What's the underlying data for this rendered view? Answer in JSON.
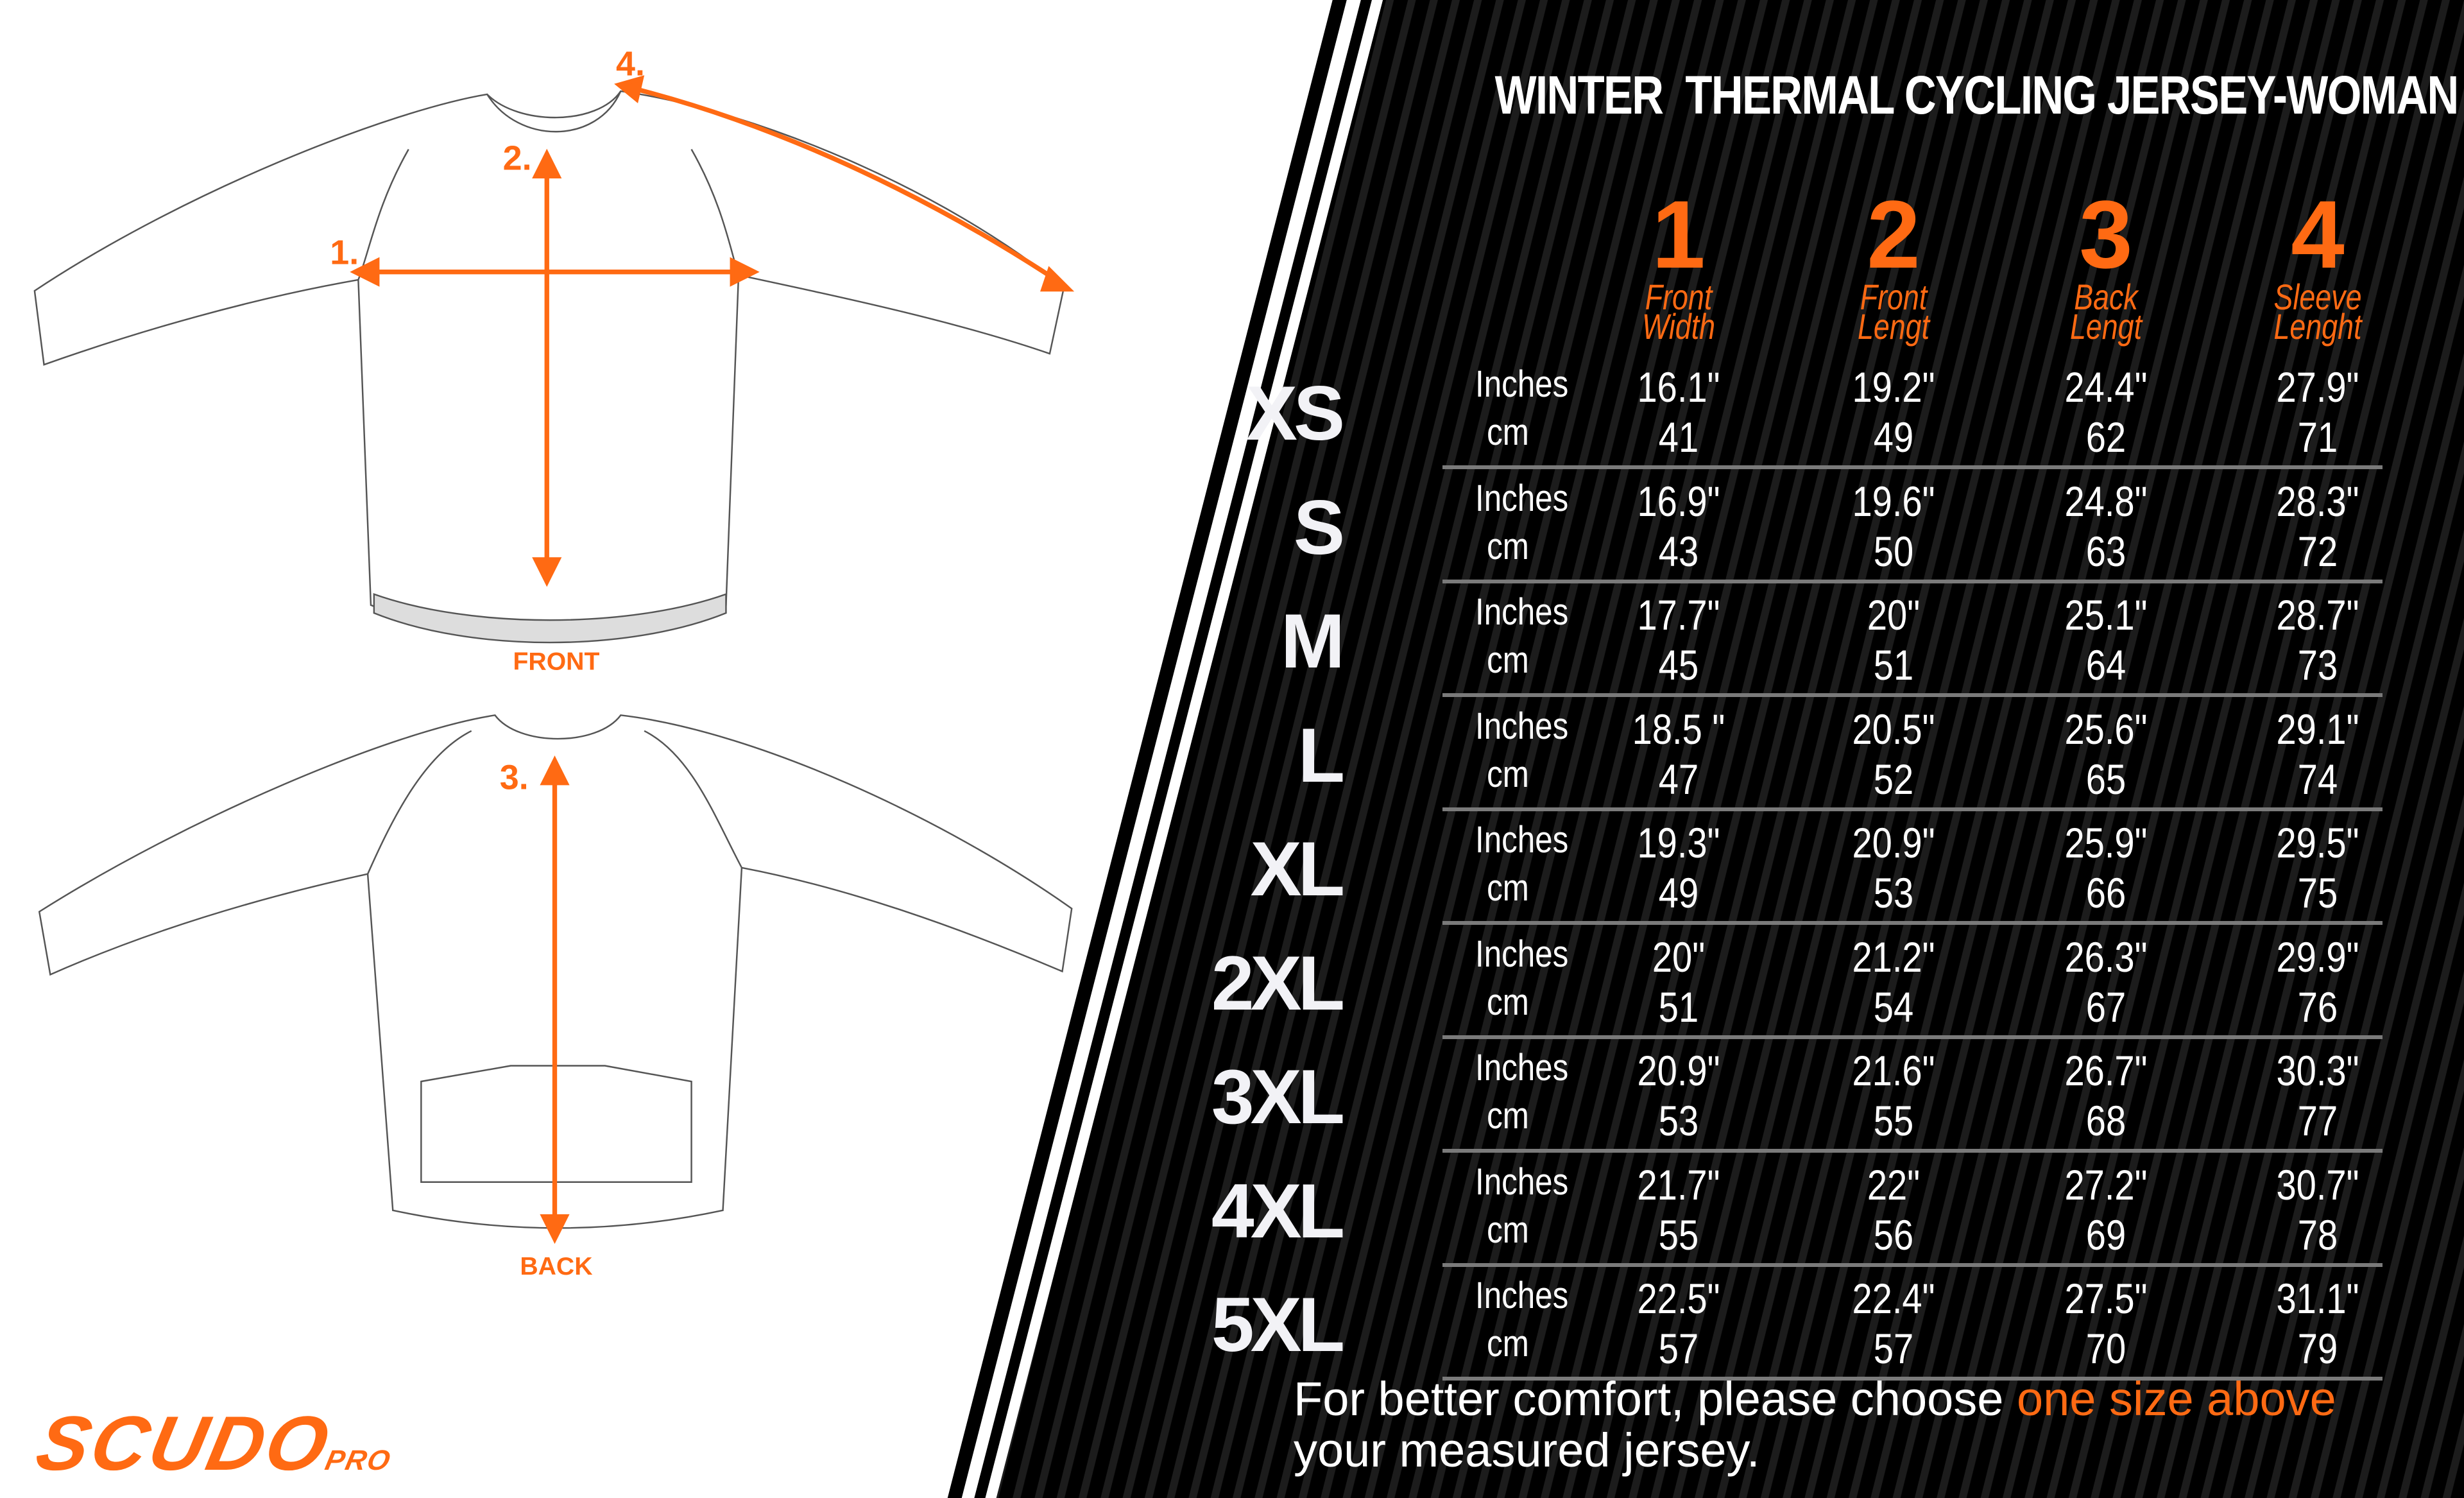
{
  "title": "WINTER  THERMAL CYCLING JERSEY-WOMAN",
  "colors": {
    "accent": "#ff6a13",
    "panel": "#000000",
    "text": "#ffffff"
  },
  "columns": [
    {
      "number": "1",
      "label_line1": "Front",
      "label_line2": "Width"
    },
    {
      "number": "2",
      "label_line1": "Front",
      "label_line2": "Lengt"
    },
    {
      "number": "3",
      "label_line1": "Back",
      "label_line2": "Lengt"
    },
    {
      "number": "4",
      "label_line1": "Sleeve",
      "label_line2": "Lenght"
    }
  ],
  "unit_labels": {
    "inches": "Inches",
    "cm": "cm"
  },
  "rows": [
    {
      "size": "XS",
      "inches": [
        "16.1\"",
        "19.2\"",
        "24.4\"",
        "27.9\""
      ],
      "cm": [
        "41",
        "49",
        "62",
        "71"
      ]
    },
    {
      "size": "S",
      "inches": [
        "16.9\"",
        "19.6\"",
        "24.8\"",
        "28.3\""
      ],
      "cm": [
        "43",
        "50",
        "63",
        "72"
      ]
    },
    {
      "size": "M",
      "inches": [
        "17.7\"",
        "20\"",
        "25.1\"",
        "28.7\""
      ],
      "cm": [
        "45",
        "51",
        "64",
        "73"
      ]
    },
    {
      "size": "L",
      "inches": [
        "18.5 \"",
        "20.5\"",
        "25.6\"",
        "29.1\""
      ],
      "cm": [
        "47",
        "52",
        "65",
        "74"
      ]
    },
    {
      "size": "XL",
      "inches": [
        "19.3\"",
        "20.9\"",
        "25.9\"",
        "29.5\""
      ],
      "cm": [
        "49",
        "53",
        "66",
        "75"
      ]
    },
    {
      "size": "2XL",
      "inches": [
        "20\"",
        "21.2\"",
        "26.3\"",
        "29.9\""
      ],
      "cm": [
        "51",
        "54",
        "67",
        "76"
      ]
    },
    {
      "size": "3XL",
      "inches": [
        "20.9\"",
        "21.6\"",
        "26.7\"",
        "30.3\""
      ],
      "cm": [
        "53",
        "55",
        "68",
        "77"
      ]
    },
    {
      "size": "4XL",
      "inches": [
        "21.7\"",
        "22\"",
        "27.2\"",
        "30.7\""
      ],
      "cm": [
        "55",
        "56",
        "69",
        "78"
      ]
    },
    {
      "size": "5XL",
      "inches": [
        "22.5\"",
        "22.4\"",
        "27.5\"",
        "31.1\""
      ],
      "cm": [
        "57",
        "57",
        "70",
        "79"
      ]
    }
  ],
  "note": {
    "before": "For better comfort, please choose ",
    "highlight": "one size above",
    "after": "your measured jersey."
  },
  "diagram": {
    "front_label": "FRONT",
    "back_label": "BACK",
    "marker1": "1.",
    "marker2": "2.",
    "marker3": "3.",
    "marker4": "4."
  },
  "logo": {
    "main": "SCUDO",
    "sub": "PRO"
  }
}
